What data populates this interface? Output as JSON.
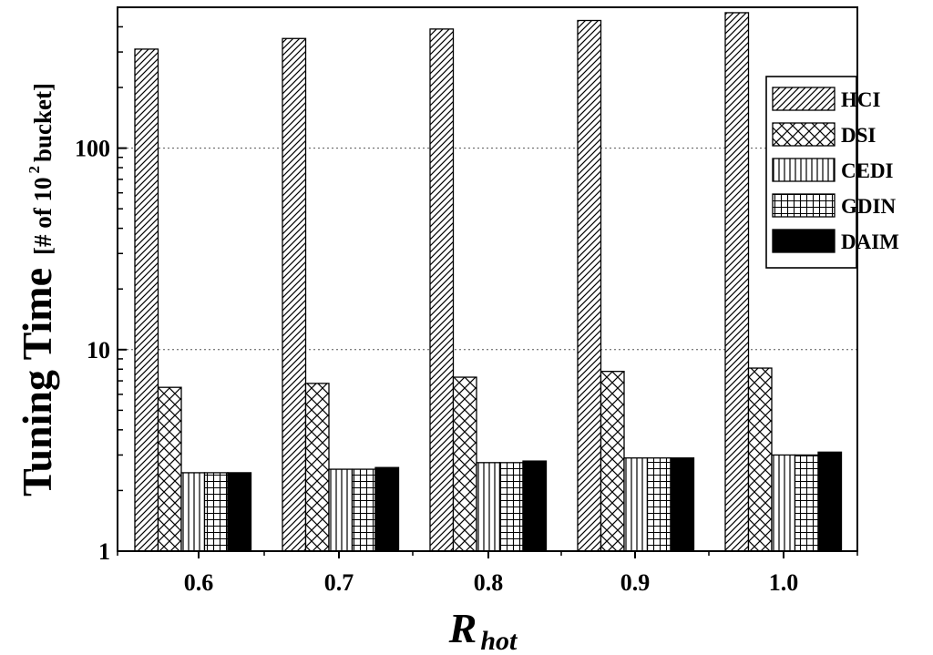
{
  "chart_data": {
    "type": "bar",
    "yscale": "log",
    "categories": [
      "0.6",
      "0.7",
      "0.8",
      "0.9",
      "1.0"
    ],
    "series": [
      {
        "name": "HCI",
        "pattern": "diagonal",
        "values": [
          310,
          350,
          390,
          430,
          470
        ]
      },
      {
        "name": "DSI",
        "pattern": "crosshatch",
        "values": [
          6.5,
          6.8,
          7.3,
          7.8,
          8.1
        ]
      },
      {
        "name": "CEDI",
        "pattern": "vertical",
        "values": [
          2.45,
          2.55,
          2.75,
          2.9,
          3.0
        ]
      },
      {
        "name": "GDIN",
        "pattern": "grid",
        "values": [
          2.45,
          2.55,
          2.75,
          2.9,
          3.0
        ]
      },
      {
        "name": "DAIM",
        "pattern": "solid",
        "values": [
          2.45,
          2.6,
          2.8,
          2.9,
          3.1
        ]
      }
    ],
    "ylim": [
      1,
      500
    ],
    "yticks": [
      1,
      10,
      100
    ],
    "ytick_labels": [
      "1",
      "10",
      "100"
    ],
    "ylabel_main": "Tuning Time",
    "ylabel_unit": "[# of 10",
    "ylabel_sup": "2",
    "ylabel_unit_end": " bucket]",
    "xlabel_main": "R",
    "xlabel_sub": "hot",
    "grid": "horizontal dotted at 10 and 100",
    "legend_position": "top-right",
    "colors": {
      "stroke": "#000000",
      "fill": "#ffffff",
      "grid": "#555555"
    }
  }
}
